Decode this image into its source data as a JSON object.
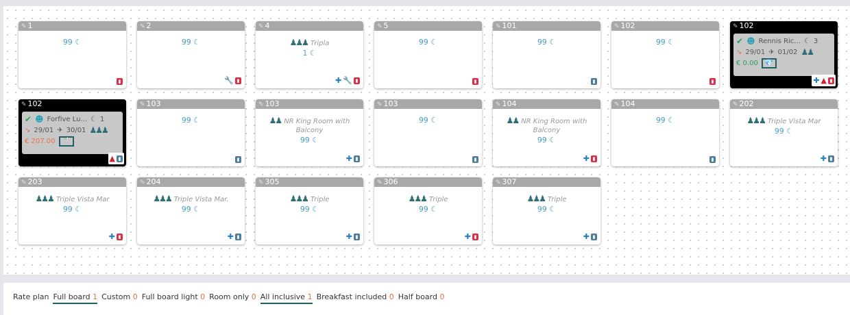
{
  "rooms": [
    {
      "number": "1",
      "avail": "99",
      "status": "dirty"
    },
    {
      "number": "2",
      "avail": "99",
      "tools": true,
      "status": "dirty"
    },
    {
      "number": "4",
      "type": "Tripla",
      "people": 3,
      "avail": "1",
      "add": true,
      "tools": true,
      "status": "dirty"
    },
    {
      "number": "5",
      "avail": "99",
      "status": "dirty"
    },
    {
      "number": "101",
      "avail": "99",
      "status": "clean"
    },
    {
      "number": "102",
      "avail": "99",
      "status": "dirty"
    },
    {
      "number": "102",
      "occupied": true,
      "guest": "Rennis Ric...",
      "nights": "3",
      "arrival": "29/01",
      "departure": "01/02",
      "people": 2,
      "price": "€ 0.00",
      "price_color": "#2aa05a",
      "board_icon": "diamond-icon",
      "board_glyph": "💎",
      "add": true,
      "alert": true,
      "status": "dirty"
    },
    {
      "number": "102",
      "occupied": true,
      "guest": "Forfive Lu...",
      "nights": "1",
      "arrival": "29/01",
      "departure": "30/01",
      "people": 3,
      "price": "€ 207.00",
      "price_color": "#e8704a",
      "board_icon": "fork-knife-icon",
      "board_glyph": "🍴",
      "alert": true,
      "status": "clean"
    },
    {
      "number": "103",
      "avail": "99",
      "status": "clean"
    },
    {
      "number": "103",
      "type": "NR King Room with Balcony",
      "people": 2,
      "avail": "99",
      "add": true,
      "status": "clean"
    },
    {
      "number": "103",
      "avail": "99",
      "status": "clean"
    },
    {
      "number": "104",
      "type": "NR King Room with Balcony",
      "people": 2,
      "avail": "99",
      "add": true,
      "status": "dirty"
    },
    {
      "number": "104",
      "avail": "99",
      "status": "clean"
    },
    {
      "number": "202",
      "type": "Triple Vista Mar",
      "people": 3,
      "avail": "99",
      "add": true,
      "status": "clean"
    },
    {
      "number": "203",
      "type": "Triple Vista Mar",
      "people": 3,
      "avail": "99",
      "add": true,
      "status": "dirty"
    },
    {
      "number": "204",
      "type": "Triple Vista Mar.",
      "people": 3,
      "avail": "99",
      "add": true,
      "status": "clean"
    },
    {
      "number": "305",
      "type": "Triple",
      "people": 3,
      "avail": "99",
      "add": true,
      "status": "clean"
    },
    {
      "number": "306",
      "type": "Triple",
      "people": 3,
      "avail": "99",
      "add": true,
      "status": "dirty"
    },
    {
      "number": "307",
      "type": "Triple",
      "people": 3,
      "avail": "99",
      "add": true,
      "status": "clean"
    }
  ],
  "footer": {
    "label": "Rate plan",
    "plans": [
      {
        "name": "Full board",
        "count": "1",
        "selected": true
      },
      {
        "name": "Custom",
        "count": "0"
      },
      {
        "name": "Full board light",
        "count": "0"
      },
      {
        "name": "Room only",
        "count": "0"
      },
      {
        "name": "All inclusive",
        "count": "1",
        "selected": true
      },
      {
        "name": "Breakfast included",
        "count": "0"
      },
      {
        "name": "Half board",
        "count": "0"
      }
    ]
  }
}
